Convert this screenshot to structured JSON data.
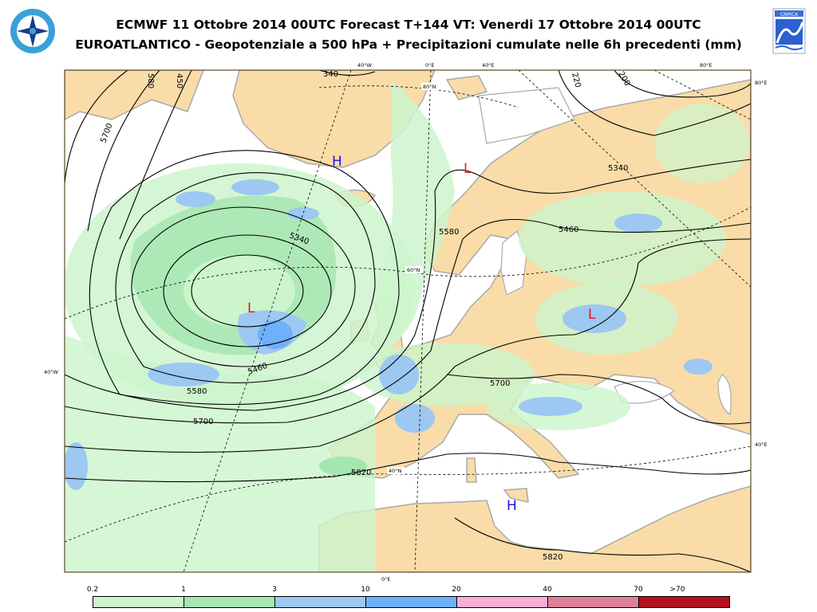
{
  "header": {
    "title_line1": "ECMWF 11 Ottobre 2014 00UTC Forecast T+144 VT: Venerdi 17 Ottobre 2014 00UTC",
    "title_line2": "EUROATLANTICO - Geopotenziale a 500 hPa + Precipitazioni cumulate nelle 6h precedenti (mm)"
  },
  "logos": {
    "left": "aeronautica-militare-seal",
    "right_text": "CNMCA"
  },
  "map": {
    "colors": {
      "sea": "#ffffff",
      "land": "#f9dca8",
      "coast": "#a9a9a9",
      "contour": "#000000",
      "high": "#1414e6",
      "low": "#e61414"
    },
    "grid_labels": {
      "top_40w": "40°W",
      "top_0e": "0°E",
      "top_40e": "40°E",
      "top_80e": "80°E",
      "right_80e": "80°E",
      "right_40e": "40°E",
      "left_40w": "40°W",
      "bottom_0e": "0°E",
      "lat_80n": "80°N",
      "lat_60n": "60°N",
      "lat_40n": "40°N"
    },
    "contour_labels": [
      "5700",
      "5340",
      "5460",
      "5580",
      "5700",
      "5820",
      "5820",
      "5700",
      "5580",
      "5460",
      "5340",
      "580",
      "450",
      "340",
      "220",
      "200"
    ],
    "pressure_centers": [
      {
        "type": "H",
        "label": "H"
      },
      {
        "type": "L",
        "label": "L"
      },
      {
        "type": "L",
        "label": "L"
      },
      {
        "type": "L",
        "label": "L"
      },
      {
        "type": "H",
        "label": "H"
      }
    ]
  },
  "legend": {
    "unit": "mm",
    "thresholds": [
      "0.2",
      "1",
      "3",
      "10",
      "20",
      "40",
      "70",
      ">70"
    ],
    "colors": [
      "#ccf5cc",
      "#a6e6b0",
      "#9cc8f2",
      "#6eb0fa",
      "#f5aed8",
      "#de7f9a",
      "#b5101e"
    ]
  }
}
